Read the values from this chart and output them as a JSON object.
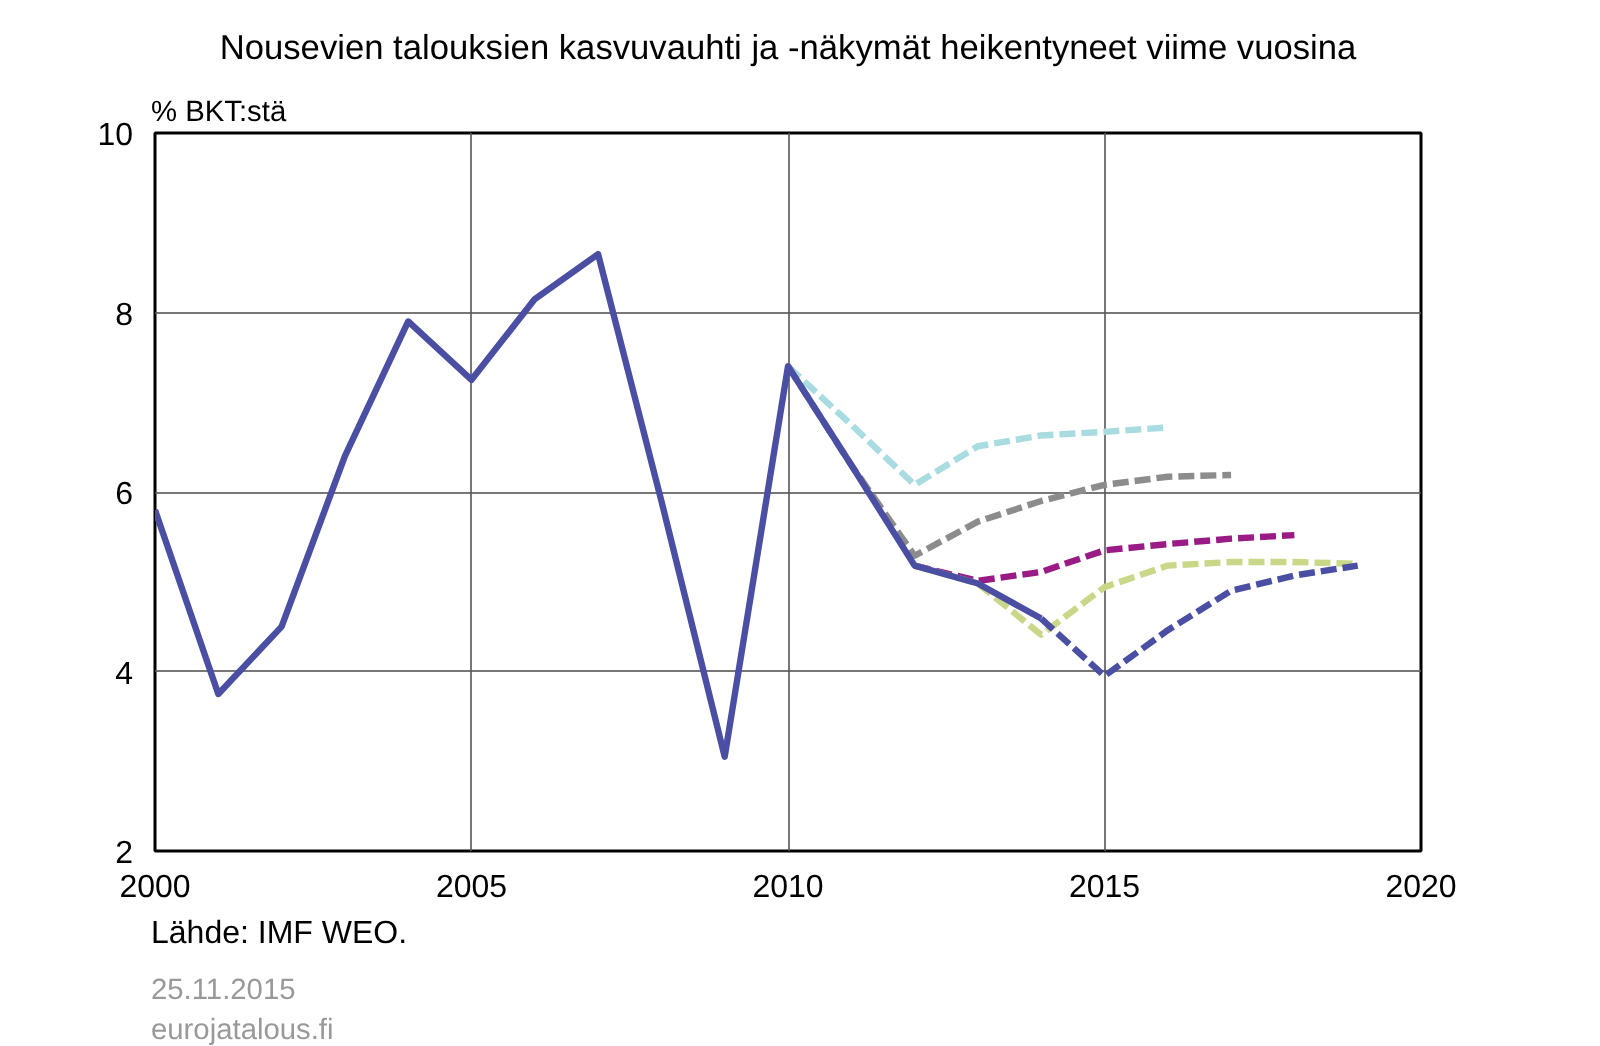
{
  "chart_data": {
    "type": "line",
    "title": "Nousevien talouksien kasvuvauhti ja -näkymät heikentyneet viime vuosina",
    "ylabel": "% BKT:stä",
    "annotations": [
      "Lähde: IMF WEO.",
      "25.11.2015",
      "eurojatalous.fi"
    ],
    "xlim": [
      2000,
      2020
    ],
    "xticks": [
      2000,
      2005,
      2010,
      2015,
      2020
    ],
    "ylim": [
      2,
      10
    ],
    "yticks": [
      2,
      4,
      6,
      8,
      10
    ],
    "grid": true,
    "series": [
      {
        "color": "#a8dce0",
        "line_style": "dashed",
        "x": [
          2010,
          2011,
          2012,
          2013,
          2014,
          2015,
          2016
        ],
        "values": [
          7.4,
          6.75,
          6.08,
          6.51,
          6.63,
          6.67,
          6.72
        ]
      },
      {
        "color": "#8c8c8c",
        "line_style": "dashed",
        "x": [
          2010,
          2011,
          2012,
          2013,
          2014,
          2015,
          2016,
          2017
        ],
        "values": [
          7.4,
          6.3,
          5.29,
          5.67,
          5.9,
          6.08,
          6.17,
          6.19
        ]
      },
      {
        "color": "#9b1b86",
        "line_style": "dashed",
        "x": [
          2012,
          2013,
          2014,
          2015,
          2016,
          2017,
          2018
        ],
        "values": [
          5.18,
          5.01,
          5.11,
          5.35,
          5.42,
          5.48,
          5.52
        ]
      },
      {
        "color": "#c8d888",
        "line_style": "dashed",
        "x": [
          2012,
          2013,
          2014,
          2015,
          2016,
          2017,
          2018,
          2019
        ],
        "values": [
          5.18,
          4.98,
          4.41,
          4.94,
          5.18,
          5.22,
          5.22,
          5.2
        ]
      },
      {
        "color": "#4a4fa3",
        "line_style": "dashed",
        "x": [
          2014,
          2015,
          2016,
          2017,
          2018,
          2019
        ],
        "values": [
          4.59,
          3.95,
          4.46,
          4.9,
          5.07,
          5.18
        ]
      },
      {
        "color": "#4a4fa3",
        "line_style": "solid",
        "x": [
          2000,
          2001,
          2002,
          2003,
          2004,
          2005,
          2006,
          2007,
          2008,
          2009,
          2010,
          2011,
          2012,
          2013,
          2014
        ],
        "values": [
          5.8,
          3.75,
          4.5,
          6.4,
          7.9,
          7.25,
          8.15,
          8.65,
          5.9,
          3.05,
          7.4,
          6.3,
          5.18,
          4.98,
          4.59
        ]
      }
    ]
  }
}
